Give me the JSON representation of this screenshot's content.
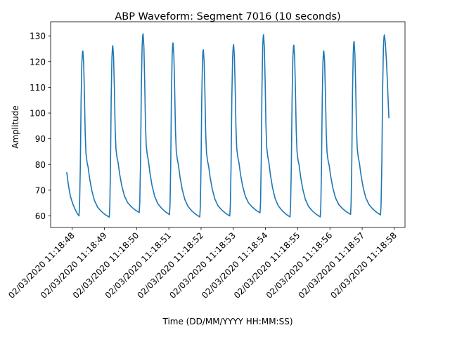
{
  "chart_data": {
    "type": "line",
    "title": "ABP Waveform: Segment 7016 (10 seconds)",
    "xlabel": "Time (DD/MM/YYYY HH:MM:SS)",
    "ylabel": "Amplitude",
    "xlim": [
      "02/03/2020 11:18:47.33",
      "02/03/2020 11:18:58.33"
    ],
    "ylim": [
      55.5,
      135.5
    ],
    "grid": false,
    "x_ticks": [
      "02/03/2020 11:18:48",
      "02/03/2020 11:18:49",
      "02/03/2020 11:18:50",
      "02/03/2020 11:18:51",
      "02/03/2020 11:18:52",
      "02/03/2020 11:18:53",
      "02/03/2020 11:18:54",
      "02/03/2020 11:18:55",
      "02/03/2020 11:18:56",
      "02/03/2020 11:18:57",
      "02/03/2020 11:18:58"
    ],
    "y_ticks": [
      60,
      70,
      80,
      90,
      100,
      110,
      120,
      130
    ],
    "series": [
      {
        "color": "#1f77b4",
        "start": "02/03/2020 11:18:47.83",
        "end": "02/03/2020 11:18:57.83",
        "first_value": 77,
        "last_value": 98,
        "beats": [
          {
            "trough_time": "02/03/2020 11:18:48.21",
            "trough": 60,
            "peak_time": "02/03/2020 11:18:48.33",
            "peak": 124.2
          },
          {
            "trough_time": "02/03/2020 11:18:49.15",
            "trough": 59.5,
            "peak_time": "02/03/2020 11:18:49.26",
            "peak": 126.2
          },
          {
            "trough_time": "02/03/2020 11:18:50.08",
            "trough": 61.3,
            "peak_time": "02/03/2020 11:18:50.20",
            "peak": 130.8
          },
          {
            "trough_time": "02/03/2020 11:18:51.02",
            "trough": 60.5,
            "peak_time": "02/03/2020 11:18:51.13",
            "peak": 127.3
          },
          {
            "trough_time": "02/03/2020 11:18:51.96",
            "trough": 59.6,
            "peak_time": "02/03/2020 11:18:52.07",
            "peak": 124.6
          },
          {
            "trough_time": "02/03/2020 11:18:52.89",
            "trough": 60.0,
            "peak_time": "02/03/2020 11:18:53.01",
            "peak": 126.6
          },
          {
            "trough_time": "02/03/2020 11:18:53.83",
            "trough": 61.2,
            "peak_time": "02/03/2020 11:18:53.94",
            "peak": 130.5
          },
          {
            "trough_time": "02/03/2020 11:18:54.76",
            "trough": 59.6,
            "peak_time": "02/03/2020 11:18:54.88",
            "peak": 126.4
          },
          {
            "trough_time": "02/03/2020 11:18:55.70",
            "trough": 59.6,
            "peak_time": "02/03/2020 11:18:55.81",
            "peak": 124.2
          },
          {
            "trough_time": "02/03/2020 11:18:56.64",
            "trough": 60.6,
            "peak_time": "02/03/2020 11:18:56.75",
            "peak": 127.9
          },
          {
            "trough_time": "02/03/2020 11:18:57.57",
            "trough": 60.4,
            "peak_time": "02/03/2020 11:18:57.69",
            "peak": 130.4
          }
        ]
      }
    ]
  }
}
